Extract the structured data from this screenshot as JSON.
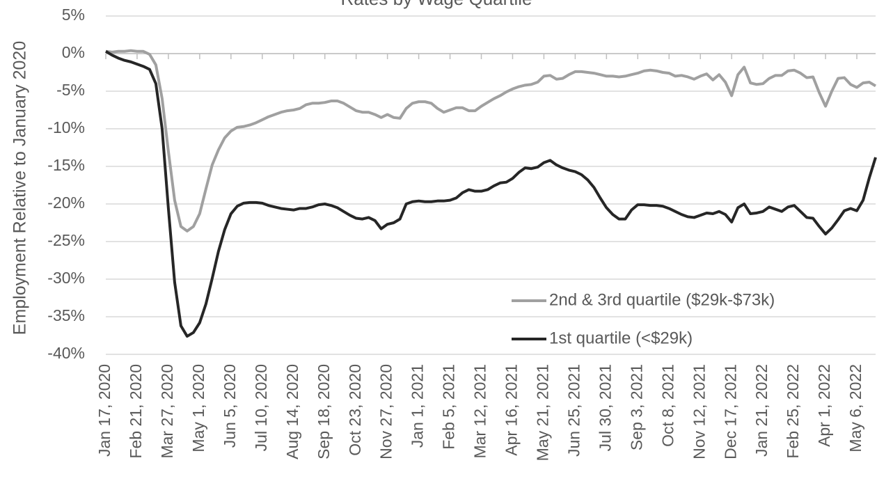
{
  "chart_data": {
    "type": "line",
    "title": "Rates by Wage Quartile",
    "y_label": "Employment Relative to January 2020",
    "categories": [
      "Jan 17, 2020",
      null,
      null,
      null,
      null,
      "Feb 21, 2020",
      null,
      null,
      null,
      null,
      "Mar 27, 2020",
      null,
      null,
      null,
      null,
      "May 1, 2020",
      null,
      null,
      null,
      null,
      "Jun 5, 2020",
      null,
      null,
      null,
      null,
      "Jul 10, 2020",
      null,
      null,
      null,
      null,
      "Aug 14, 2020",
      null,
      null,
      null,
      null,
      "Sep 18, 2020",
      null,
      null,
      null,
      null,
      "Oct 23, 2020",
      null,
      null,
      null,
      null,
      "Nov 27, 2020",
      null,
      null,
      null,
      null,
      "Jan 1, 2021",
      null,
      null,
      null,
      null,
      "Feb 5, 2021",
      null,
      null,
      null,
      null,
      "Mar 12, 2021",
      null,
      null,
      null,
      null,
      "Apr 16, 2021",
      null,
      null,
      null,
      null,
      "May 21, 2021",
      null,
      null,
      null,
      null,
      "Jun 25, 2021",
      null,
      null,
      null,
      null,
      "Jul 30, 2021",
      null,
      null,
      null,
      null,
      "Sep 3, 2021",
      null,
      null,
      null,
      null,
      "Oct 8, 2021",
      null,
      null,
      null,
      null,
      "Nov 12, 2021",
      null,
      null,
      null,
      null,
      "Dec 17, 2021",
      null,
      null,
      null,
      null,
      "Jan 21, 2022",
      null,
      null,
      null,
      null,
      "Feb 25, 2022",
      null,
      null,
      null,
      null,
      "Apr 1, 2022",
      null,
      null,
      null,
      null,
      "May 6, 2022",
      null,
      null,
      null
    ],
    "series": [
      {
        "name": "2nd & 3rd quartile ($29k-$73k)",
        "color": "#a0a0a0",
        "values": [
          0.3,
          0.2,
          0.3,
          0.3,
          0.4,
          0.3,
          0.3,
          -0.1,
          -1.5,
          -6,
          -13,
          -19.5,
          -23,
          -23.6,
          -23,
          -21.3,
          -18,
          -14.8,
          -12.8,
          -11.2,
          -10.3,
          -9.8,
          -9.7,
          -9.5,
          -9.2,
          -8.8,
          -8.4,
          -8.1,
          -7.8,
          -7.6,
          -7.5,
          -7.3,
          -6.8,
          -6.6,
          -6.6,
          -6.5,
          -6.3,
          -6.3,
          -6.6,
          -7.1,
          -7.6,
          -7.8,
          -7.8,
          -8.1,
          -8.5,
          -8.1,
          -8.5,
          -8.6,
          -7.3,
          -6.6,
          -6.4,
          -6.4,
          -6.6,
          -7.3,
          -7.8,
          -7.5,
          -7.2,
          -7.2,
          -7.6,
          -7.6,
          -7,
          -6.5,
          -6,
          -5.6,
          -5.1,
          -4.7,
          -4.4,
          -4.2,
          -4.1,
          -3.8,
          -3,
          -2.9,
          -3.4,
          -3.3,
          -2.8,
          -2.4,
          -2.4,
          -2.5,
          -2.6,
          -2.8,
          -3,
          -3,
          -3.1,
          -3,
          -2.8,
          -2.6,
          -2.3,
          -2.2,
          -2.3,
          -2.5,
          -2.6,
          -3,
          -2.9,
          -3.1,
          -3.4,
          -3,
          -2.7,
          -3.5,
          -2.8,
          -3.8,
          -5.6,
          -2.8,
          -1.8,
          -3.9,
          -4.1,
          -4,
          -3.3,
          -2.9,
          -2.9,
          -2.3,
          -2.2,
          -2.6,
          -3.2,
          -3.1,
          -5.2,
          -7,
          -5,
          -3.3,
          -3.2,
          -4.1,
          -4.5,
          -3.9,
          -3.8,
          -4.3
        ]
      },
      {
        "name": "1st quartile (<$29k)",
        "color": "#262626",
        "values": [
          0.3,
          -0.2,
          -0.6,
          -0.9,
          -1.1,
          -1.4,
          -1.7,
          -2.1,
          -4,
          -10,
          -20.6,
          -30.4,
          -36.2,
          -37.6,
          -37.1,
          -35.8,
          -33.3,
          -29.9,
          -26.3,
          -23.4,
          -21.3,
          -20.3,
          -19.9,
          -19.8,
          -19.8,
          -19.9,
          -20.2,
          -20.4,
          -20.6,
          -20.7,
          -20.8,
          -20.6,
          -20.6,
          -20.4,
          -20.1,
          -20,
          -20.2,
          -20.5,
          -21,
          -21.5,
          -21.9,
          -22,
          -21.8,
          -22.2,
          -23.3,
          -22.7,
          -22.5,
          -22,
          -20,
          -19.7,
          -19.6,
          -19.7,
          -19.7,
          -19.6,
          -19.6,
          -19.5,
          -19.2,
          -18.5,
          -18.1,
          -18.3,
          -18.3,
          -18.1,
          -17.6,
          -17.2,
          -17.1,
          -16.6,
          -15.8,
          -15.2,
          -15.3,
          -15.1,
          -14.5,
          -14.2,
          -14.8,
          -15.2,
          -15.5,
          -15.7,
          -16.1,
          -16.8,
          -17.8,
          -19.2,
          -20.5,
          -21.4,
          -22,
          -22,
          -20.8,
          -20.1,
          -20.1,
          -20.2,
          -20.2,
          -20.3,
          -20.6,
          -21,
          -21.4,
          -21.7,
          -21.8,
          -21.5,
          -21.2,
          -21.3,
          -21,
          -21.4,
          -22.4,
          -20.5,
          -20,
          -21.3,
          -21.2,
          -21,
          -20.4,
          -20.7,
          -21,
          -20.4,
          -20.2,
          -21,
          -21.8,
          -21.9,
          -23,
          -24,
          -23.2,
          -22.1,
          -20.9,
          -20.6,
          -20.9,
          -19.5,
          -16.5,
          -13.8
        ]
      }
    ],
    "ylim": [
      -40,
      5
    ],
    "yticks": [
      {
        "value": 5,
        "label": "5%"
      },
      {
        "value": 0,
        "label": "0%"
      },
      {
        "value": -5,
        "label": "-5%"
      },
      {
        "value": -10,
        "label": "-10%"
      },
      {
        "value": -15,
        "label": "-15%"
      },
      {
        "value": -20,
        "label": "-20%"
      },
      {
        "value": -25,
        "label": "-25%"
      },
      {
        "value": -30,
        "label": "-30%"
      },
      {
        "value": -35,
        "label": "-35%"
      },
      {
        "value": -40,
        "label": "-40%"
      }
    ],
    "grid": true,
    "legend": "lower right"
  }
}
